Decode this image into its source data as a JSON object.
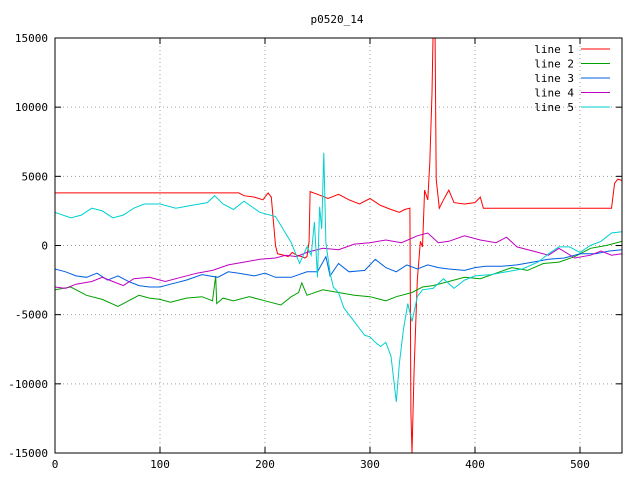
{
  "chart_data": {
    "type": "line",
    "title": "p0520_14",
    "xlabel": "",
    "ylabel": "",
    "xlim": [
      0,
      540
    ],
    "ylim": [
      -15000,
      15000
    ],
    "xticks": [
      0,
      100,
      200,
      300,
      400,
      500
    ],
    "yticks": [
      -15000,
      -10000,
      -5000,
      0,
      5000,
      10000,
      15000
    ],
    "grid": true,
    "legend_position": "top-right",
    "series": [
      {
        "name": "line 1",
        "color": "#ff0000",
        "points": [
          [
            0,
            3800
          ],
          [
            175,
            3800
          ],
          [
            180,
            3600
          ],
          [
            190,
            3500
          ],
          [
            198,
            3300
          ],
          [
            203,
            3800
          ],
          [
            206,
            3500
          ],
          [
            210,
            0
          ],
          [
            212,
            -600
          ],
          [
            218,
            -700
          ],
          [
            222,
            -800
          ],
          [
            226,
            -500
          ],
          [
            230,
            -700
          ],
          [
            235,
            -800
          ],
          [
            238,
            -900
          ],
          [
            240,
            -800
          ],
          [
            242,
            300
          ],
          [
            243,
            3900
          ],
          [
            250,
            3700
          ],
          [
            260,
            3400
          ],
          [
            270,
            3700
          ],
          [
            280,
            3300
          ],
          [
            290,
            3000
          ],
          [
            300,
            3400
          ],
          [
            310,
            2900
          ],
          [
            320,
            2600
          ],
          [
            328,
            2400
          ],
          [
            333,
            2600
          ],
          [
            338,
            2700
          ],
          [
            339,
            -12000
          ],
          [
            340,
            -15000
          ],
          [
            342,
            -9000
          ],
          [
            345,
            -2500
          ],
          [
            348,
            300
          ],
          [
            350,
            -100
          ],
          [
            352,
            4000
          ],
          [
            355,
            3300
          ],
          [
            357,
            6000
          ],
          [
            359,
            11000
          ],
          [
            360,
            15000
          ],
          [
            362,
            15000
          ],
          [
            363,
            4800
          ],
          [
            366,
            2700
          ],
          [
            370,
            3300
          ],
          [
            375,
            4000
          ],
          [
            380,
            3100
          ],
          [
            390,
            3000
          ],
          [
            400,
            3100
          ],
          [
            405,
            3500
          ],
          [
            408,
            2700
          ],
          [
            420,
            2700
          ],
          [
            500,
            2700
          ],
          [
            530,
            2700
          ],
          [
            533,
            4500
          ],
          [
            536,
            4800
          ],
          [
            540,
            4700
          ]
        ]
      },
      {
        "name": "line 2",
        "color": "#00a000",
        "points": [
          [
            0,
            -3200
          ],
          [
            15,
            -3000
          ],
          [
            30,
            -3600
          ],
          [
            45,
            -3900
          ],
          [
            60,
            -4400
          ],
          [
            70,
            -4000
          ],
          [
            80,
            -3600
          ],
          [
            90,
            -3800
          ],
          [
            100,
            -3900
          ],
          [
            110,
            -4100
          ],
          [
            125,
            -3800
          ],
          [
            140,
            -3700
          ],
          [
            150,
            -4000
          ],
          [
            153,
            -2200
          ],
          [
            154,
            -4200
          ],
          [
            160,
            -3800
          ],
          [
            170,
            -4000
          ],
          [
            185,
            -3700
          ],
          [
            200,
            -4000
          ],
          [
            215,
            -4300
          ],
          [
            225,
            -3700
          ],
          [
            232,
            -3400
          ],
          [
            235,
            -2700
          ],
          [
            240,
            -3600
          ],
          [
            255,
            -3200
          ],
          [
            270,
            -3400
          ],
          [
            285,
            -3600
          ],
          [
            300,
            -3700
          ],
          [
            315,
            -4000
          ],
          [
            325,
            -3700
          ],
          [
            340,
            -3400
          ],
          [
            350,
            -3000
          ],
          [
            360,
            -2900
          ],
          [
            375,
            -2600
          ],
          [
            390,
            -2300
          ],
          [
            405,
            -2400
          ],
          [
            420,
            -2000
          ],
          [
            435,
            -1600
          ],
          [
            450,
            -1800
          ],
          [
            465,
            -1300
          ],
          [
            480,
            -1200
          ],
          [
            495,
            -800
          ],
          [
            510,
            -200
          ],
          [
            525,
            0
          ],
          [
            540,
            300
          ]
        ]
      },
      {
        "name": "line 3",
        "color": "#0060e0",
        "points": [
          [
            0,
            -1700
          ],
          [
            10,
            -1900
          ],
          [
            20,
            -2200
          ],
          [
            30,
            -2300
          ],
          [
            40,
            -2000
          ],
          [
            50,
            -2500
          ],
          [
            60,
            -2200
          ],
          [
            70,
            -2600
          ],
          [
            80,
            -2900
          ],
          [
            90,
            -3000
          ],
          [
            100,
            -3000
          ],
          [
            110,
            -2800
          ],
          [
            125,
            -2500
          ],
          [
            140,
            -2100
          ],
          [
            155,
            -2300
          ],
          [
            165,
            -1900
          ],
          [
            175,
            -2000
          ],
          [
            190,
            -2200
          ],
          [
            200,
            -2000
          ],
          [
            210,
            -2300
          ],
          [
            225,
            -2300
          ],
          [
            240,
            -1900
          ],
          [
            250,
            -1900
          ],
          [
            258,
            -800
          ],
          [
            262,
            -2200
          ],
          [
            270,
            -1300
          ],
          [
            280,
            -1900
          ],
          [
            295,
            -1800
          ],
          [
            305,
            -1000
          ],
          [
            315,
            -1600
          ],
          [
            325,
            -1900
          ],
          [
            335,
            -1400
          ],
          [
            345,
            -1700
          ],
          [
            355,
            -1400
          ],
          [
            365,
            -1600
          ],
          [
            375,
            -1700
          ],
          [
            390,
            -1800
          ],
          [
            400,
            -1600
          ],
          [
            410,
            -1500
          ],
          [
            425,
            -1500
          ],
          [
            440,
            -1400
          ],
          [
            455,
            -1200
          ],
          [
            470,
            -1000
          ],
          [
            485,
            -900
          ],
          [
            500,
            -600
          ],
          [
            515,
            -600
          ],
          [
            528,
            -400
          ],
          [
            540,
            -300
          ]
        ]
      },
      {
        "name": "line 4",
        "color": "#c000c0",
        "points": [
          [
            0,
            -3000
          ],
          [
            10,
            -3100
          ],
          [
            20,
            -2800
          ],
          [
            35,
            -2600
          ],
          [
            45,
            -2300
          ],
          [
            55,
            -2600
          ],
          [
            65,
            -2900
          ],
          [
            75,
            -2400
          ],
          [
            90,
            -2300
          ],
          [
            105,
            -2600
          ],
          [
            120,
            -2300
          ],
          [
            135,
            -2000
          ],
          [
            150,
            -1800
          ],
          [
            165,
            -1400
          ],
          [
            180,
            -1200
          ],
          [
            195,
            -1000
          ],
          [
            210,
            -900
          ],
          [
            220,
            -700
          ],
          [
            230,
            -800
          ],
          [
            240,
            -500
          ],
          [
            255,
            -200
          ],
          [
            270,
            -300
          ],
          [
            285,
            100
          ],
          [
            300,
            200
          ],
          [
            315,
            400
          ],
          [
            330,
            200
          ],
          [
            345,
            700
          ],
          [
            355,
            900
          ],
          [
            365,
            200
          ],
          [
            375,
            300
          ],
          [
            390,
            700
          ],
          [
            405,
            400
          ],
          [
            420,
            200
          ],
          [
            430,
            600
          ],
          [
            440,
            -100
          ],
          [
            455,
            -400
          ],
          [
            470,
            -700
          ],
          [
            480,
            -200
          ],
          [
            495,
            -900
          ],
          [
            510,
            -700
          ],
          [
            520,
            -400
          ],
          [
            530,
            -700
          ],
          [
            540,
            -600
          ]
        ]
      },
      {
        "name": "line 5",
        "color": "#00d0d0",
        "points": [
          [
            0,
            2400
          ],
          [
            15,
            2000
          ],
          [
            25,
            2200
          ],
          [
            35,
            2700
          ],
          [
            45,
            2500
          ],
          [
            55,
            2000
          ],
          [
            65,
            2200
          ],
          [
            75,
            2700
          ],
          [
            85,
            3000
          ],
          [
            100,
            3000
          ],
          [
            115,
            2700
          ],
          [
            130,
            2900
          ],
          [
            145,
            3100
          ],
          [
            152,
            3600
          ],
          [
            160,
            3000
          ],
          [
            170,
            2600
          ],
          [
            180,
            3200
          ],
          [
            195,
            2400
          ],
          [
            210,
            2100
          ],
          [
            225,
            200
          ],
          [
            233,
            -1300
          ],
          [
            240,
            -100
          ],
          [
            244,
            -700
          ],
          [
            247,
            1700
          ],
          [
            250,
            -2300
          ],
          [
            252,
            2800
          ],
          [
            254,
            1200
          ],
          [
            256,
            6700
          ],
          [
            258,
            200
          ],
          [
            260,
            -900
          ],
          [
            262,
            -2000
          ],
          [
            265,
            -3000
          ],
          [
            270,
            -3400
          ],
          [
            275,
            -4500
          ],
          [
            280,
            -5000
          ],
          [
            285,
            -5500
          ],
          [
            290,
            -6000
          ],
          [
            295,
            -6500
          ],
          [
            300,
            -6600
          ],
          [
            305,
            -7000
          ],
          [
            310,
            -7300
          ],
          [
            315,
            -7000
          ],
          [
            320,
            -8000
          ],
          [
            325,
            -11300
          ],
          [
            328,
            -8500
          ],
          [
            332,
            -6000
          ],
          [
            336,
            -4200
          ],
          [
            340,
            -5500
          ],
          [
            345,
            -3700
          ],
          [
            350,
            -3200
          ],
          [
            360,
            -3100
          ],
          [
            370,
            -2400
          ],
          [
            380,
            -3100
          ],
          [
            390,
            -2500
          ],
          [
            400,
            -2200
          ],
          [
            415,
            -2100
          ],
          [
            430,
            -1900
          ],
          [
            445,
            -1700
          ],
          [
            460,
            -1200
          ],
          [
            470,
            -600
          ],
          [
            480,
            -100
          ],
          [
            490,
            -100
          ],
          [
            500,
            -500
          ],
          [
            510,
            0
          ],
          [
            520,
            300
          ],
          [
            530,
            900
          ],
          [
            540,
            1000
          ]
        ]
      }
    ]
  }
}
